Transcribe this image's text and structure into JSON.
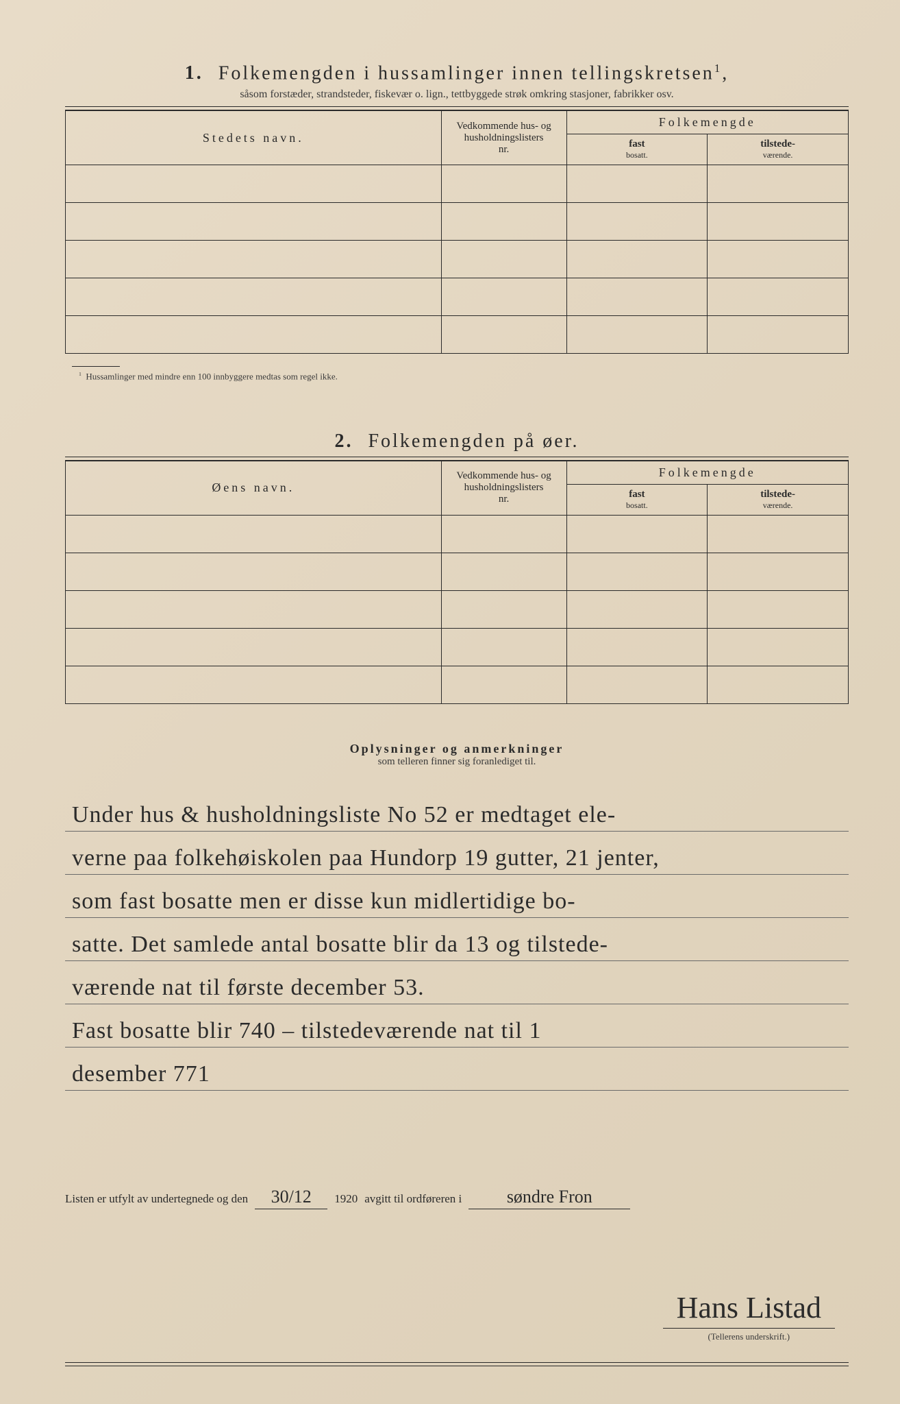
{
  "section1": {
    "number": "1.",
    "title": "Folkemengden i hussamlinger innen tellingskretsen",
    "title_sup": "1",
    "subtitle": "såsom forstæder, strandsteder, fiskevær o. lign., tettbyggede strøk omkring stasjoner, fabrikker osv.",
    "headers": {
      "name": "Stedets navn.",
      "nr_line1": "Vedkommende hus- og",
      "nr_line2": "husholdningslisters",
      "nr_line3": "nr.",
      "folk": "Folkemengde",
      "fast": "fast",
      "fast_sub": "bosatt.",
      "til": "tilstede-",
      "til_sub": "værende."
    },
    "rows": 5,
    "footnote_mark": "1",
    "footnote": "Hussamlinger med mindre enn 100 innbyggere medtas som regel ikke."
  },
  "section2": {
    "number": "2.",
    "title": "Folkemengden på øer.",
    "headers": {
      "name": "Øens navn.",
      "nr_line1": "Vedkommende hus- og",
      "nr_line2": "husholdningslisters",
      "nr_line3": "nr.",
      "folk": "Folkemengde",
      "fast": "fast",
      "fast_sub": "bosatt.",
      "til": "tilstede-",
      "til_sub": "værende."
    },
    "rows": 5
  },
  "remarks": {
    "title": "Oplysninger og anmerkninger",
    "subtitle": "som telleren finner sig foranlediget til.",
    "lines": [
      "Under hus & husholdningsliste No 52 er medtaget ele-",
      "verne paa folkehøiskolen paa Hundorp 19 gutter, 21 jenter,",
      "som fast bosatte men er disse kun midlertidige bo-",
      "satte. Det samlede antal bosatte blir da 13 og tilstede-",
      "værende nat til første december 53.",
      "Fast bosatte blir 740 – tilstedeværende nat til 1",
      "desember 771",
      "",
      ""
    ]
  },
  "signoff": {
    "prefix": "Listen er utfylt av undertegnede og den",
    "date": "30/12",
    "year": "1920",
    "mid": "avgitt til ordføreren i",
    "place": "søndre Fron",
    "signature": "Hans Listad",
    "sig_label": "(Tellerens underskrift.)"
  },
  "colors": {
    "ink": "#2a2a2a",
    "paper": "#e4d8c2",
    "handwriting": "#2b2b2b"
  }
}
